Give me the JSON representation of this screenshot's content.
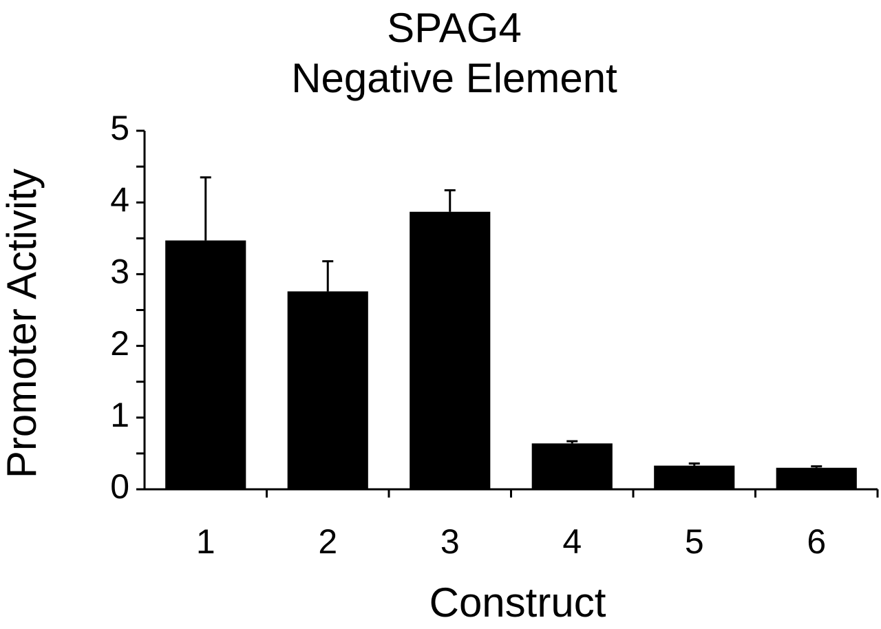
{
  "chart_data": {
    "type": "bar",
    "title": "SPAG4",
    "subtitle": "Negative Element",
    "x_label": "Construct",
    "y_label": "Promoter Activity",
    "categories": [
      "1",
      "2",
      "3",
      "4",
      "5",
      "6"
    ],
    "values": [
      3.47,
      2.76,
      3.87,
      0.64,
      0.33,
      0.3
    ],
    "errors": [
      0.88,
      0.42,
      0.3,
      0.03,
      0.03,
      0.02
    ],
    "color": "#000000",
    "ylim": [
      0,
      5
    ],
    "yticks": [
      0,
      1,
      2,
      3,
      4,
      5
    ],
    "yminorticks": [
      0.5,
      1.5,
      2.5,
      3.5,
      4.5
    ],
    "grid": false
  }
}
